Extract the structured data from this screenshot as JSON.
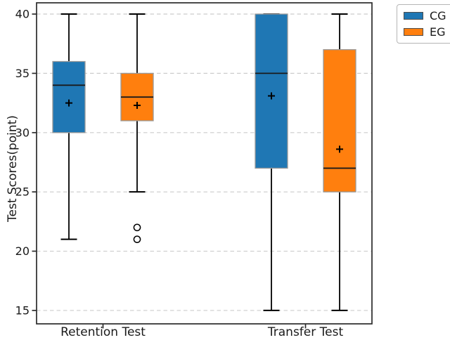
{
  "figure": {
    "background": "#ffffff",
    "text_color": "#1a1a1a"
  },
  "legend": {
    "entries": [
      {
        "label": "CG",
        "color": "#1f77b4"
      },
      {
        "label": "EG",
        "color": "#ff7f0e"
      }
    ]
  },
  "chart_data": {
    "type": "boxplot",
    "title": "",
    "xlabel": "",
    "ylabel": "Test Scores(point)",
    "categories": [
      "Retention Test",
      "Transfer Test"
    ],
    "yticks": [
      15,
      20,
      25,
      30,
      35,
      40
    ],
    "ylim": [
      13.87,
      40.95
    ],
    "grid": "horizontal-dashed",
    "legend_position": "upper-right-outside",
    "series": [
      {
        "name": "CG",
        "color": "#1f77b4",
        "boxes": [
          {
            "category": "Retention Test",
            "whisker_low": 21,
            "q1": 30,
            "median": 34,
            "q3": 36,
            "whisker_high": 40,
            "mean": 32.5,
            "outliers": []
          },
          {
            "category": "Transfer Test",
            "whisker_low": 15,
            "q1": 27,
            "median": 35,
            "q3": 40,
            "whisker_high": 40,
            "mean": 33.1,
            "outliers": []
          }
        ]
      },
      {
        "name": "EG",
        "color": "#ff7f0e",
        "boxes": [
          {
            "category": "Retention Test",
            "whisker_low": 25,
            "q1": 31,
            "median": 33,
            "q3": 35,
            "whisker_high": 40,
            "mean": 32.3,
            "outliers": [
              22,
              21
            ]
          },
          {
            "category": "Transfer Test",
            "whisker_low": 15,
            "q1": 25,
            "median": 27,
            "q3": 37,
            "whisker_high": 40,
            "mean": 28.6,
            "outliers": []
          }
        ]
      }
    ],
    "style": {
      "box_edge_color": "#999999",
      "median_color": "#1a1a1a",
      "whisker_color": "#000000",
      "mean_marker": "+",
      "mean_marker_color": "#000000",
      "outlier_marker": "o",
      "outlier_color": "#000000",
      "grid_color": "#cccccc",
      "frame_color": "#2b2b2b",
      "tick_label_color": "#1a1a1a"
    }
  }
}
